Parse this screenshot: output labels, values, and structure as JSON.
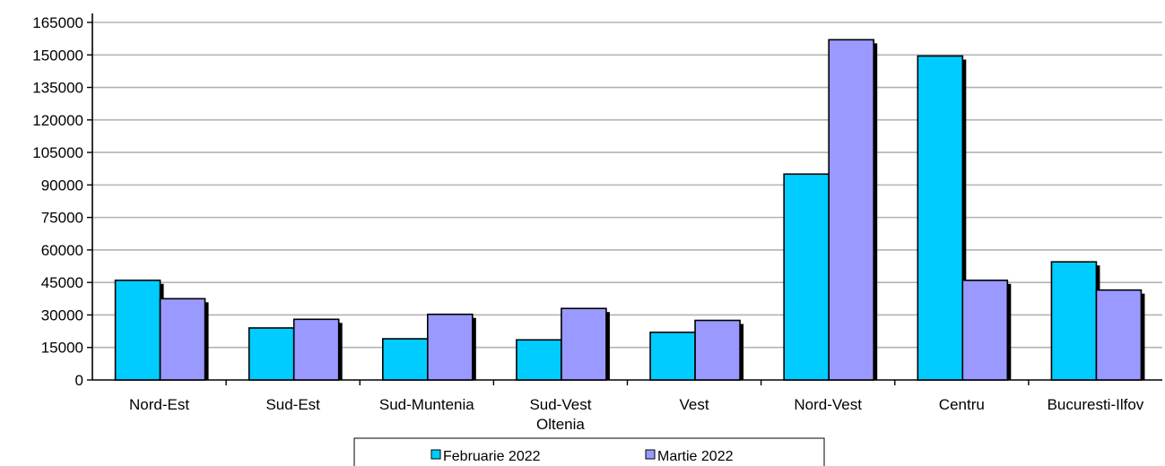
{
  "chart_data": {
    "type": "bar",
    "categories": [
      [
        "Nord-Est"
      ],
      [
        "Sud-Est"
      ],
      [
        "Sud-Muntenia"
      ],
      [
        "Sud-Vest",
        "Oltenia"
      ],
      [
        "Vest"
      ],
      [
        "Nord-Vest"
      ],
      [
        "Centru"
      ],
      [
        "Bucuresti-Ilfov"
      ]
    ],
    "series": [
      {
        "name": "Februarie 2022",
        "color": "#00CCFF",
        "values": [
          46000,
          24000,
          19000,
          18500,
          22000,
          95000,
          149500,
          54500
        ]
      },
      {
        "name": "Martie 2022",
        "color": "#9999FF",
        "values": [
          37500,
          28000,
          30300,
          33000,
          27500,
          157000,
          46000,
          41500
        ]
      }
    ],
    "ylim": [
      0,
      165000
    ],
    "yticks": [
      "0",
      "15000",
      "30000",
      "45000",
      "60000",
      "75000",
      "90000",
      "105000",
      "120000",
      "135000",
      "150000",
      "165000"
    ],
    "grid": true,
    "legend_position": "bottom",
    "title": "",
    "xlabel": "",
    "ylabel": ""
  }
}
